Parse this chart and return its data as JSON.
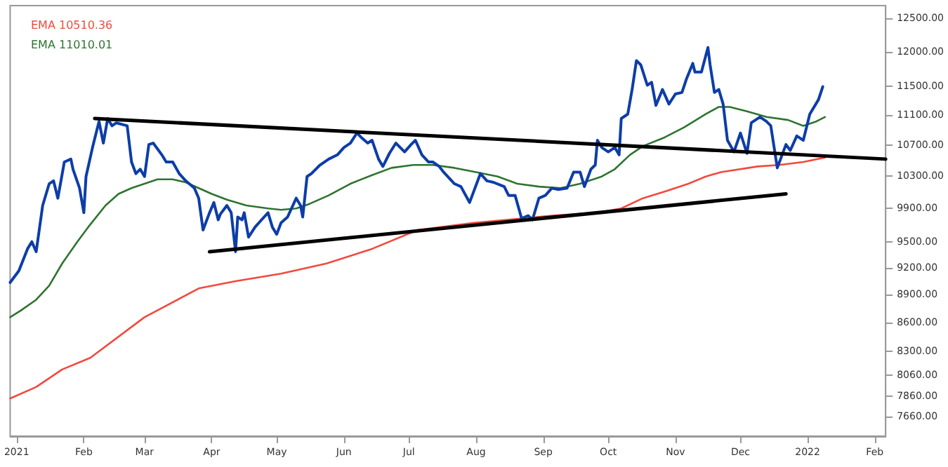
{
  "chart_data": {
    "type": "line",
    "log": true,
    "grid": false,
    "legend": "top left",
    "marker": "none",
    "line_style": "solid",
    "xlim": [
      "2020-12-29",
      "2022-02-06"
    ],
    "xticks": [
      {
        "value": "2021-01-01",
        "label": "2021"
      },
      {
        "value": "2021-02-01",
        "label": "Feb"
      },
      {
        "value": "2021-03-01",
        "label": "Mar"
      },
      {
        "value": "2021-04-01",
        "label": "Apr"
      },
      {
        "value": "2021-05-01",
        "label": "May"
      },
      {
        "value": "2021-06-01",
        "label": "Jun"
      },
      {
        "value": "2021-07-01",
        "label": "Jul"
      },
      {
        "value": "2021-08-01",
        "label": "Aug"
      },
      {
        "value": "2021-09-01",
        "label": "Sep"
      },
      {
        "value": "2021-10-01",
        "label": "Oct"
      },
      {
        "value": "2021-11-01",
        "label": "Nov"
      },
      {
        "value": "2021-12-01",
        "label": "Dec"
      },
      {
        "value": "2022-01-01",
        "label": "2022"
      },
      {
        "value": "2022-02-01",
        "label": "Feb"
      }
    ],
    "ylim": [
      7480,
      12700
    ],
    "yticks": [
      {
        "value": 7660,
        "label": "7660.00"
      },
      {
        "value": 7860,
        "label": "7860.00"
      },
      {
        "value": 8060,
        "label": "8060.00"
      },
      {
        "value": 8300,
        "label": "8300.00"
      },
      {
        "value": 8600,
        "label": "8600.00"
      },
      {
        "value": 8900,
        "label": "8900.00"
      },
      {
        "value": 9200,
        "label": "9200.00"
      },
      {
        "value": 9500,
        "label": "9500.00"
      },
      {
        "value": 9900,
        "label": "9900.00"
      },
      {
        "value": 10300,
        "label": "10300.00"
      },
      {
        "value": 10700,
        "label": "10700.00"
      },
      {
        "value": 11100,
        "label": "11100.00"
      },
      {
        "value": 11500,
        "label": "11500.00"
      },
      {
        "value": 12000,
        "label": "12000.00"
      },
      {
        "value": 12500,
        "label": "12500.00"
      }
    ],
    "series": [
      {
        "name": "EMA 10510.36",
        "color": "#f04a3e",
        "x": [
          "2020-12-29",
          "2021-01-10",
          "2021-01-22",
          "2021-02-04",
          "2021-03-01",
          "2021-03-26",
          "2021-04-12",
          "2021-05-03",
          "2021-05-24",
          "2021-06-14",
          "2021-07-05",
          "2021-07-31",
          "2021-08-15",
          "2021-09-05",
          "2021-09-26",
          "2021-10-07",
          "2021-10-17",
          "2021-10-28",
          "2021-11-07",
          "2021-11-15",
          "2021-11-22",
          "2021-12-09",
          "2021-12-19",
          "2021-12-30",
          "2022-01-09"
        ],
        "values": [
          7835,
          7946,
          8119,
          8237,
          8658,
          8970,
          9050,
          9134,
          9249,
          9417,
          9638,
          9724,
          9759,
          9810,
          9845,
          9897,
          10022,
          10112,
          10202,
          10293,
          10349,
          10421,
          10440,
          10479,
          10536
        ]
      },
      {
        "name": "EMA 11010.01",
        "color": "#2e7430",
        "x": [
          "2020-12-29",
          "2021-01-03",
          "2021-01-10",
          "2021-01-16",
          "2021-01-22",
          "2021-01-29",
          "2021-02-03",
          "2021-02-11",
          "2021-02-17",
          "2021-02-23",
          "2021-03-01",
          "2021-03-07",
          "2021-03-14",
          "2021-03-20",
          "2021-03-26",
          "2021-04-01",
          "2021-04-08",
          "2021-04-17",
          "2021-04-27",
          "2021-05-03",
          "2021-05-10",
          "2021-05-16",
          "2021-05-25",
          "2021-06-04",
          "2021-06-14",
          "2021-06-23",
          "2021-07-03",
          "2021-07-12",
          "2021-07-22",
          "2021-08-01",
          "2021-08-11",
          "2021-08-20",
          "2021-08-30",
          "2021-09-09",
          "2021-09-18",
          "2021-09-28",
          "2021-10-04",
          "2021-10-11",
          "2021-10-17",
          "2021-10-27",
          "2021-11-05",
          "2021-11-15",
          "2021-11-21",
          "2021-11-26",
          "2021-12-04",
          "2021-12-13",
          "2021-12-23",
          "2021-12-30",
          "2022-01-05",
          "2022-01-09"
        ],
        "values": [
          8658,
          8731,
          8846,
          9001,
          9249,
          9500,
          9672,
          9933,
          10076,
          10148,
          10202,
          10257,
          10257,
          10220,
          10148,
          10076,
          10004,
          9933,
          9897,
          9880,
          9897,
          9951,
          10057,
          10202,
          10311,
          10403,
          10440,
          10440,
          10403,
          10349,
          10293,
          10202,
          10166,
          10148,
          10202,
          10293,
          10386,
          10571,
          10685,
          10800,
          10935,
          11114,
          11213,
          11213,
          11153,
          11075,
          11034,
          10955,
          11014,
          11075
        ]
      },
      {
        "color": "#0d3da8",
        "x": [
          "2020-12-29",
          "2021-01-02",
          "2021-01-06",
          "2021-01-08",
          "2021-01-10",
          "2021-01-13",
          "2021-01-16",
          "2021-01-18",
          "2021-01-20",
          "2021-01-23",
          "2021-01-26",
          "2021-01-27",
          "2021-01-30",
          "2021-02-01",
          "2021-02-02",
          "2021-02-05",
          "2021-02-08",
          "2021-02-10",
          "2021-02-12",
          "2021-02-14",
          "2021-02-16",
          "2021-02-21",
          "2021-02-23",
          "2021-02-25",
          "2021-02-27",
          "2021-03-01",
          "2021-03-03",
          "2021-03-05",
          "2021-03-09",
          "2021-03-11",
          "2021-03-14",
          "2021-03-17",
          "2021-03-20",
          "2021-03-24",
          "2021-03-26",
          "2021-03-28",
          "2021-03-31",
          "2021-04-02",
          "2021-04-04",
          "2021-04-05",
          "2021-04-08",
          "2021-04-10",
          "2021-04-12",
          "2021-04-13",
          "2021-04-15",
          "2021-04-16",
          "2021-04-18",
          "2021-04-21",
          "2021-04-24",
          "2021-04-27",
          "2021-04-29",
          "2021-05-01",
          "2021-05-03",
          "2021-05-06",
          "2021-05-10",
          "2021-05-12",
          "2021-05-13",
          "2021-05-15",
          "2021-05-17",
          "2021-05-21",
          "2021-05-25",
          "2021-05-29",
          "2021-06-01",
          "2021-06-04",
          "2021-06-07",
          "2021-06-09",
          "2021-06-12",
          "2021-06-14",
          "2021-06-17",
          "2021-06-19",
          "2021-06-22",
          "2021-06-25",
          "2021-06-29",
          "2021-07-02",
          "2021-07-04",
          "2021-07-07",
          "2021-07-10",
          "2021-07-12",
          "2021-07-15",
          "2021-07-17",
          "2021-07-22",
          "2021-07-25",
          "2021-07-29",
          "2021-08-03",
          "2021-08-06",
          "2021-08-09",
          "2021-08-14",
          "2021-08-16",
          "2021-08-19",
          "2021-08-22",
          "2021-08-25",
          "2021-08-27",
          "2021-08-30",
          "2021-09-02",
          "2021-09-05",
          "2021-09-08",
          "2021-09-12",
          "2021-09-15",
          "2021-09-18",
          "2021-09-20",
          "2021-09-23",
          "2021-09-25",
          "2021-09-26",
          "2021-09-28",
          "2021-10-01",
          "2021-10-04",
          "2021-10-06",
          "2021-10-07",
          "2021-10-10",
          "2021-10-12",
          "2021-10-14",
          "2021-10-16",
          "2021-10-19",
          "2021-10-21",
          "2021-10-23",
          "2021-10-26",
          "2021-10-29",
          "2021-11-01",
          "2021-11-04",
          "2021-11-06",
          "2021-11-09",
          "2021-11-10",
          "2021-11-13",
          "2021-11-16",
          "2021-11-17",
          "2021-11-19",
          "2021-11-21",
          "2021-11-23",
          "2021-11-25",
          "2021-11-28",
          "2021-12-01",
          "2021-12-04",
          "2021-12-06",
          "2021-12-10",
          "2021-12-13",
          "2021-12-15",
          "2021-12-18",
          "2021-12-22",
          "2021-12-24",
          "2021-12-27",
          "2021-12-30",
          "2022-01-02",
          "2022-01-06",
          "2022-01-08"
        ],
        "values": [
          9036,
          9166,
          9417,
          9500,
          9384,
          9933,
          10202,
          10239,
          10022,
          10479,
          10516,
          10386,
          10148,
          9845,
          10293,
          10667,
          11014,
          10725,
          11054,
          10955,
          10995,
          10955,
          10479,
          10330,
          10386,
          10293,
          10706,
          10725,
          10571,
          10479,
          10479,
          10330,
          10239,
          10148,
          10022,
          9638,
          9845,
          9969,
          9759,
          9828,
          9933,
          9845,
          9384,
          9793,
          9759,
          9845,
          9553,
          9672,
          9759,
          9845,
          9672,
          9587,
          9724,
          9793,
          10022,
          9933,
          9793,
          10293,
          10330,
          10440,
          10516,
          10571,
          10667,
          10725,
          10858,
          10800,
          10725,
          10762,
          10516,
          10421,
          10590,
          10725,
          10610,
          10706,
          10762,
          10571,
          10479,
          10479,
          10421,
          10349,
          10202,
          10166,
          9969,
          10330,
          10239,
          10220,
          10166,
          10057,
          10057,
          9776,
          9810,
          9759,
          10022,
          10057,
          10148,
          10130,
          10148,
          10349,
          10349,
          10166,
          10386,
          10440,
          10762,
          10667,
          10610,
          10667,
          10571,
          11054,
          11114,
          11455,
          11870,
          11808,
          11516,
          11557,
          11233,
          11455,
          11253,
          11393,
          11414,
          11598,
          11829,
          11703,
          11703,
          12063,
          11808,
          11414,
          11455,
          11253,
          10762,
          10610,
          10858,
          10590,
          10995,
          11075,
          11014,
          10955,
          10403,
          10706,
          10629,
          10820,
          10762,
          11114,
          11313,
          11495
        ]
      },
      {
        "color": "#000000",
        "x": [
          "2021-02-06",
          "2022-02-06"
        ],
        "values": [
          11054,
          10516
        ]
      },
      {
        "color": "#000000",
        "x": [
          "2021-03-31",
          "2021-12-22"
        ],
        "values": [
          9384,
          10076
        ]
      }
    ]
  }
}
